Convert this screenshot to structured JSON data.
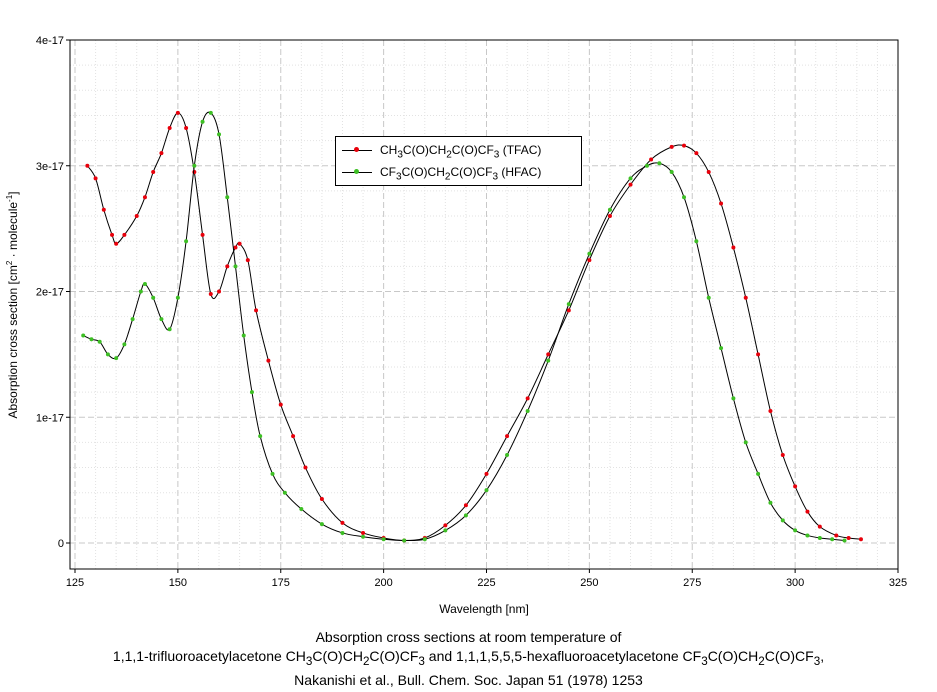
{
  "chart_data": {
    "type": "line",
    "xlabel": "Wavelength [nm]",
    "ylabel_html": "Absorption cross section [cm<tspan dy='-5' font-size='8'>2</tspan><tspan dy='5'> · molecule</tspan><tspan dy='-5' font-size='8'>-1</tspan><tspan dy='5'>]</tspan>",
    "xlim": [
      125,
      325
    ],
    "ylim": [
      -2e-18,
      4e-17
    ],
    "x_ticks": [
      125,
      150,
      175,
      200,
      225,
      250,
      275,
      300,
      325
    ],
    "x_tick_labels": [
      "125",
      "150",
      "175",
      "200",
      "225",
      "250",
      "275",
      "300",
      "325"
    ],
    "y_ticks": [
      0,
      1e-17,
      2e-17,
      3e-17,
      4e-17
    ],
    "y_tick_labels": [
      "0",
      "1e-17",
      "2e-17",
      "3e-17",
      "4e-17"
    ],
    "grid": true,
    "legend_position": "center-top",
    "series": [
      {
        "name_html": "CH<sub>3</sub>C(O)CH<sub>2</sub>C(O)CF<sub>3</sub> (TFAC)",
        "color": "#e8000b",
        "x": [
          128,
          130,
          132,
          134,
          135,
          137,
          140,
          142,
          144,
          146,
          148,
          150,
          152,
          154,
          156,
          158,
          160,
          162,
          164,
          165,
          167,
          169,
          172,
          175,
          178,
          181,
          185,
          190,
          195,
          200,
          205,
          210,
          215,
          220,
          225,
          230,
          235,
          240,
          245,
          250,
          255,
          260,
          265,
          270,
          273,
          276,
          279,
          282,
          285,
          288,
          291,
          294,
          297,
          300,
          303,
          306,
          310,
          313,
          316
        ],
        "y": [
          3e-17,
          2.9e-17,
          2.65e-17,
          2.45e-17,
          2.38e-17,
          2.45e-17,
          2.6e-17,
          2.75e-17,
          2.95e-17,
          3.1e-17,
          3.3e-17,
          3.42e-17,
          3.3e-17,
          2.95e-17,
          2.45e-17,
          1.98e-17,
          2e-17,
          2.2e-17,
          2.35e-17,
          2.38e-17,
          2.25e-17,
          1.85e-17,
          1.45e-17,
          1.1e-17,
          8.5e-18,
          6e-18,
          3.5e-18,
          1.6e-18,
          8e-19,
          4e-19,
          2e-19,
          4e-19,
          1.4e-18,
          3e-18,
          5.5e-18,
          8.5e-18,
          1.15e-17,
          1.5e-17,
          1.85e-17,
          2.25e-17,
          2.6e-17,
          2.85e-17,
          3.05e-17,
          3.15e-17,
          3.16e-17,
          3.1e-17,
          2.95e-17,
          2.7e-17,
          2.35e-17,
          1.95e-17,
          1.5e-17,
          1.05e-17,
          7e-18,
          4.5e-18,
          2.5e-18,
          1.3e-18,
          6e-19,
          4e-19,
          3e-19
        ]
      },
      {
        "name_html": "CF<sub>3</sub>C(O)CH<sub>2</sub>C(O)CF<sub>3</sub> (HFAC)",
        "color": "#3dbf24",
        "x": [
          127,
          129,
          131,
          133,
          135,
          137,
          139,
          141,
          142,
          144,
          146,
          148,
          150,
          152,
          154,
          156,
          158,
          160,
          162,
          164,
          166,
          168,
          170,
          173,
          176,
          180,
          185,
          190,
          195,
          200,
          205,
          210,
          215,
          220,
          225,
          230,
          235,
          240,
          245,
          250,
          255,
          260,
          264,
          267,
          270,
          273,
          276,
          279,
          282,
          285,
          288,
          291,
          294,
          297,
          300,
          303,
          306,
          309,
          312
        ],
        "y": [
          1.65e-17,
          1.62e-17,
          1.6e-17,
          1.5e-17,
          1.47e-17,
          1.58e-17,
          1.78e-17,
          2e-17,
          2.06e-17,
          1.95e-17,
          1.78e-17,
          1.7e-17,
          1.95e-17,
          2.4e-17,
          3e-17,
          3.35e-17,
          3.42e-17,
          3.25e-17,
          2.75e-17,
          2.2e-17,
          1.65e-17,
          1.2e-17,
          8.5e-18,
          5.5e-18,
          4e-18,
          2.7e-18,
          1.5e-18,
          8e-19,
          5e-19,
          3e-19,
          2e-19,
          3e-19,
          1e-18,
          2.2e-18,
          4.2e-18,
          7e-18,
          1.05e-17,
          1.45e-17,
          1.9e-17,
          2.3e-17,
          2.65e-17,
          2.9e-17,
          3e-17,
          3.02e-17,
          2.95e-17,
          2.75e-17,
          2.4e-17,
          1.95e-17,
          1.55e-17,
          1.15e-17,
          8e-18,
          5.5e-18,
          3.2e-18,
          1.8e-18,
          1e-18,
          6e-19,
          4e-19,
          3e-19,
          2e-19
        ]
      }
    ]
  },
  "caption": {
    "line1": "Absorption cross sections at room temperature of",
    "line2_html": "1,1,1-trifluoroacetylacetone CH<sub>3</sub>C(O)CH<sub>2</sub>C(O)CF<sub>3</sub> and 1,1,1,5,5,5-hexafluoroacetylacetone CF<sub>3</sub>C(O)CH<sub>2</sub>C(O)CF<sub>3</sub>,",
    "line3": "Nakanishi et al., Bull. Chem. Soc. Japan 51 (1978) 1253"
  }
}
